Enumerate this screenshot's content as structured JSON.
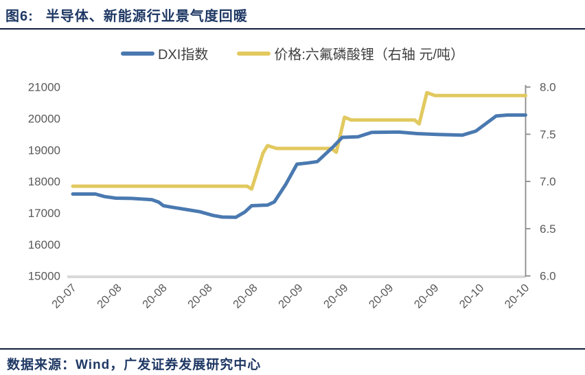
{
  "header": {
    "fig_label": "图6:",
    "title": "半导体、新能源行业景气度回暖"
  },
  "footer": {
    "source": "数据来源：Wind，广发证券发展研究中心"
  },
  "chart_data": {
    "type": "line",
    "title": "半导体、新能源行业景气度回暖",
    "legend_position": "top",
    "grid": false,
    "x_tick_labels": [
      "20-07",
      "20-08",
      "20-08",
      "20-08",
      "20-08",
      "20-09",
      "20-09",
      "20-09",
      "20-09",
      "20-10",
      "20-10"
    ],
    "left_axis": {
      "min": 15000,
      "max": 21000,
      "ticks": [
        "21000",
        "20000",
        "19000",
        "18000",
        "17000",
        "16000",
        "15000"
      ]
    },
    "right_axis": {
      "min": 6.0,
      "max": 8.0,
      "ticks": [
        "8.0",
        "7.5",
        "7.0",
        "6.5",
        "6.0"
      ]
    },
    "colors": {
      "axis_text": "#595959",
      "baseline": "#d9d9d9",
      "right_axis_line": "#8a8a8a"
    },
    "series": [
      {
        "name": "DXI指数",
        "axis": "left",
        "color": "#4a79b0",
        "points": [
          [
            0,
            17600
          ],
          [
            0.5,
            17600
          ],
          [
            0.7,
            17520
          ],
          [
            0.95,
            17470
          ],
          [
            1.3,
            17460
          ],
          [
            1.75,
            17420
          ],
          [
            1.9,
            17340
          ],
          [
            2.0,
            17230
          ],
          [
            2.2,
            17180
          ],
          [
            2.5,
            17110
          ],
          [
            2.8,
            17040
          ],
          [
            3.1,
            16920
          ],
          [
            3.3,
            16870
          ],
          [
            3.6,
            16860
          ],
          [
            3.8,
            17030
          ],
          [
            3.95,
            17230
          ],
          [
            4.3,
            17250
          ],
          [
            4.45,
            17350
          ],
          [
            4.7,
            17900
          ],
          [
            4.95,
            18550
          ],
          [
            5.2,
            18590
          ],
          [
            5.4,
            18630
          ],
          [
            5.75,
            19100
          ],
          [
            5.95,
            19400
          ],
          [
            6.3,
            19420
          ],
          [
            6.6,
            19560
          ],
          [
            7.2,
            19570
          ],
          [
            7.6,
            19520
          ],
          [
            8.1,
            19490
          ],
          [
            8.6,
            19470
          ],
          [
            8.9,
            19600
          ],
          [
            9.35,
            20080
          ],
          [
            9.6,
            20110
          ],
          [
            10,
            20110
          ]
        ]
      },
      {
        "name": "价格:六氟磷酸锂（右轴 元/吨）",
        "axis": "right",
        "color": "#e2c95f",
        "points": [
          [
            0,
            6.95
          ],
          [
            3.85,
            6.95
          ],
          [
            3.95,
            6.92
          ],
          [
            4.2,
            7.3
          ],
          [
            4.3,
            7.38
          ],
          [
            4.5,
            7.35
          ],
          [
            5.7,
            7.35
          ],
          [
            5.82,
            7.31
          ],
          [
            6.0,
            7.68
          ],
          [
            6.15,
            7.65
          ],
          [
            7.55,
            7.65
          ],
          [
            7.65,
            7.61
          ],
          [
            7.82,
            7.94
          ],
          [
            8.0,
            7.91
          ],
          [
            10,
            7.91
          ]
        ]
      }
    ]
  }
}
